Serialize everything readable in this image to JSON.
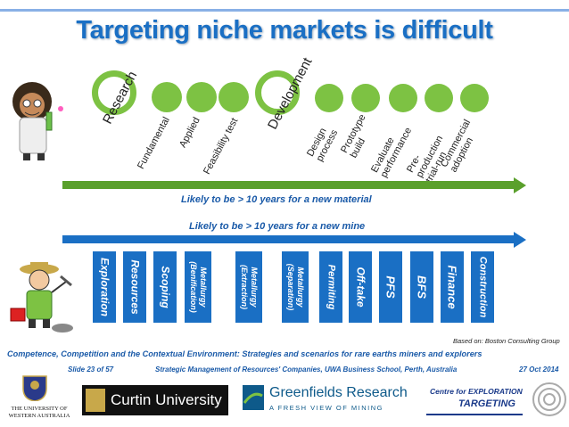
{
  "title": "Targeting niche markets is difficult",
  "research_stages": {
    "big_labels": [
      "Research",
      "Development"
    ],
    "labels": [
      "Fundamental",
      "Applied",
      "Feasibility test",
      "Design process",
      "Prototype build",
      "Evaluate performance",
      "Pre-production trial-run",
      "Commercial adoption"
    ]
  },
  "captions": {
    "material": "Likely to be > 10 years for a new material",
    "mine": "Likely to be > 10 years for a new mine"
  },
  "mine_stages": [
    "Exploration",
    "Resources",
    "Scoping",
    "Metallurgy (Benification)",
    "Metallurgy (Extraction)",
    "Metallurgy (Separation)",
    "Permiting",
    "Off-take",
    "PFS",
    "BFS",
    "Finance",
    "Construction"
  ],
  "source_note": "Based on: Boston Consulting Group",
  "footer": {
    "subtitle": "Competence, Competition and the Contextual Environment: Strategies and scenarios for rare earths miners and explorers",
    "slide": "Slide 23 of 57",
    "course": "Strategic Management of Resources' Companies, UWA Business School, Perth, Australia",
    "date": "27 Oct 2014"
  },
  "logos": {
    "uwa": "THE UNIVERSITY OF WESTERN AUSTRALIA",
    "curtin": "Curtin University",
    "greenfields": "Greenfields Research",
    "greenfields_tag": "A FRESH VIEW OF MINING",
    "cet_line1": "Centre for EXPLORATION",
    "cet_line2": "TARGETING"
  },
  "colors": {
    "title": "#1a6fc4",
    "green": "#7dc243",
    "arrow_green": "#5aa02c",
    "blue": "#1a6fc4"
  }
}
